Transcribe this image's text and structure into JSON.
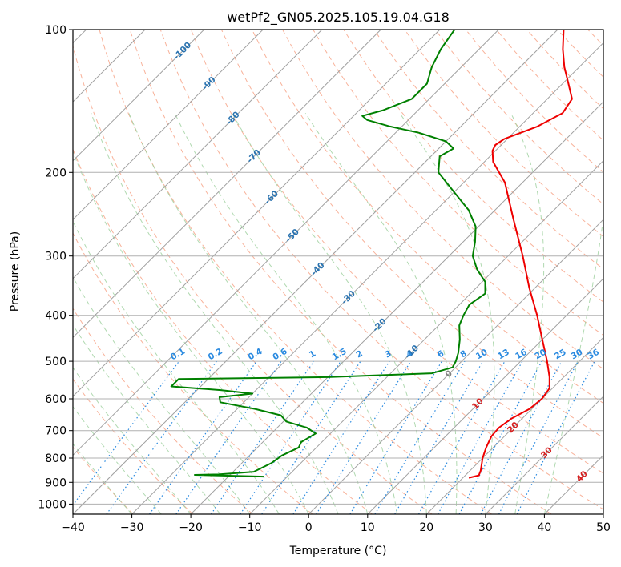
{
  "chart_data": {
    "type": "skew-t",
    "title": "wetPf2_GN05.2025.105.19.04.G18",
    "xlabel": "Temperature (°C)",
    "ylabel": "Pressure (hPa)",
    "xlim": [
      -40,
      50
    ],
    "ylim": [
      1050,
      100
    ],
    "x_ticks": [
      "−40",
      "−30",
      "−20",
      "−10",
      "0",
      "10",
      "20",
      "30",
      "40",
      "50"
    ],
    "y_ticks": [
      {
        "p": 100,
        "label": "100"
      },
      {
        "p": 200,
        "label": "200"
      },
      {
        "p": 300,
        "label": "300"
      },
      {
        "p": 400,
        "label": "400"
      },
      {
        "p": 500,
        "label": "500"
      },
      {
        "p": 600,
        "label": "600"
      },
      {
        "p": 700,
        "label": "700"
      },
      {
        "p": 800,
        "label": "800"
      },
      {
        "p": 900,
        "label": "900"
      },
      {
        "p": 1000,
        "label": "1000"
      }
    ],
    "grid": true,
    "colors": {
      "temperature": "#ee0000",
      "dewpoint": "#008000",
      "isotherm": "#a0a0a0",
      "dry_adiabat": "#f7a488",
      "moist_adiabat": "#9ccf9c",
      "mixing_ratio": "#2a8ae0",
      "isotherm_label_cold": "#2a73b0",
      "isotherm_label_warm": "#d62020",
      "isotherm_label_zero": "#808080"
    },
    "temperature_profile": [
      {
        "p": 880,
        "t": 21.0
      },
      {
        "p": 870,
        "t": 22.3
      },
      {
        "p": 850,
        "t": 21.8
      },
      {
        "p": 800,
        "t": 20.0
      },
      {
        "p": 760,
        "t": 18.8
      },
      {
        "p": 720,
        "t": 17.8
      },
      {
        "p": 690,
        "t": 17.6
      },
      {
        "p": 660,
        "t": 18.2
      },
      {
        "p": 630,
        "t": 19.6
      },
      {
        "p": 600,
        "t": 20.0
      },
      {
        "p": 570,
        "t": 19.5
      },
      {
        "p": 540,
        "t": 17.6
      },
      {
        "p": 500,
        "t": 14.5
      },
      {
        "p": 450,
        "t": 10.0
      },
      {
        "p": 400,
        "t": 5.0
      },
      {
        "p": 350,
        "t": -1.0
      },
      {
        "p": 300,
        "t": -7.5
      },
      {
        "p": 250,
        "t": -15.5
      },
      {
        "p": 210,
        "t": -23.0
      },
      {
        "p": 190,
        "t": -28.5
      },
      {
        "p": 180,
        "t": -30.5
      },
      {
        "p": 175,
        "t": -31.0
      },
      {
        "p": 170,
        "t": -30.5
      },
      {
        "p": 160,
        "t": -27.0
      },
      {
        "p": 150,
        "t": -25.0
      },
      {
        "p": 140,
        "t": -25.8
      },
      {
        "p": 130,
        "t": -29.0
      },
      {
        "p": 120,
        "t": -32.5
      },
      {
        "p": 110,
        "t": -35.8
      },
      {
        "p": 100,
        "t": -39.0
      }
    ],
    "dewpoint_profile": [
      {
        "p": 875,
        "td": -14.0
      },
      {
        "p": 868,
        "td": -26.0
      },
      {
        "p": 866,
        "td": -22.0
      },
      {
        "p": 855,
        "td": -16.5
      },
      {
        "p": 820,
        "td": -15.0
      },
      {
        "p": 790,
        "td": -14.5
      },
      {
        "p": 760,
        "td": -13.0
      },
      {
        "p": 740,
        "td": -13.5
      },
      {
        "p": 710,
        "td": -12.5
      },
      {
        "p": 690,
        "td": -15.0
      },
      {
        "p": 670,
        "td": -19.5
      },
      {
        "p": 650,
        "td": -21.5
      },
      {
        "p": 630,
        "td": -27.0
      },
      {
        "p": 610,
        "td": -34.0
      },
      {
        "p": 595,
        "td": -35.0
      },
      {
        "p": 585,
        "td": -30.0
      },
      {
        "p": 575,
        "td": -36.0
      },
      {
        "p": 565,
        "td": -45.0
      },
      {
        "p": 545,
        "td": -45.0
      },
      {
        "p": 540,
        "td": -20.0
      },
      {
        "p": 530,
        "td": -3.0
      },
      {
        "p": 515,
        "td": -0.5
      },
      {
        "p": 500,
        "td": -1.0
      },
      {
        "p": 480,
        "td": -2.0
      },
      {
        "p": 450,
        "td": -4.0
      },
      {
        "p": 420,
        "td": -6.5
      },
      {
        "p": 400,
        "td": -7.5
      },
      {
        "p": 380,
        "td": -8.3
      },
      {
        "p": 360,
        "td": -7.5
      },
      {
        "p": 340,
        "td": -9.5
      },
      {
        "p": 320,
        "td": -13.0
      },
      {
        "p": 300,
        "td": -16.0
      },
      {
        "p": 280,
        "td": -18.0
      },
      {
        "p": 260,
        "td": -20.5
      },
      {
        "p": 240,
        "td": -24.5
      },
      {
        "p": 220,
        "td": -30.0
      },
      {
        "p": 200,
        "td": -36.0
      },
      {
        "p": 185,
        "td": -38.5
      },
      {
        "p": 178,
        "td": -37.5
      },
      {
        "p": 172,
        "td": -40.0
      },
      {
        "p": 165,
        "td": -46.0
      },
      {
        "p": 160,
        "td": -52.0
      },
      {
        "p": 155,
        "td": -57.0
      },
      {
        "p": 152,
        "td": -58.5
      },
      {
        "p": 148,
        "td": -56.0
      },
      {
        "p": 140,
        "td": -53.0
      },
      {
        "p": 130,
        "td": -53.0
      },
      {
        "p": 120,
        "td": -55.0
      },
      {
        "p": 110,
        "td": -56.5
      },
      {
        "p": 100,
        "td": -57.5
      }
    ],
    "isotherm_labels": [
      {
        "t": -100,
        "label": "-100",
        "p": 111
      },
      {
        "t": -90,
        "label": "-90",
        "p": 130
      },
      {
        "t": -80,
        "label": "-80",
        "p": 154
      },
      {
        "t": -70,
        "label": "-70",
        "p": 185
      },
      {
        "t": -60,
        "label": "-60",
        "p": 226
      },
      {
        "t": -50,
        "label": "-50",
        "p": 272
      },
      {
        "t": -40,
        "label": "-40",
        "p": 320
      },
      {
        "t": -30,
        "label": "-30",
        "p": 367
      },
      {
        "t": -20,
        "label": "-20",
        "p": 420
      },
      {
        "t": -10,
        "label": "-10",
        "p": 478
      },
      {
        "t": 0,
        "label": "0",
        "p": 532
      },
      {
        "t": 10,
        "label": "10",
        "p": 615
      },
      {
        "t": 20,
        "label": "20",
        "p": 690
      },
      {
        "t": 30,
        "label": "30",
        "p": 780
      },
      {
        "t": 40,
        "label": "40",
        "p": 875
      }
    ],
    "mixing_ratio_labels": [
      "0.1",
      "0.2",
      "0.4",
      "0.6",
      "1",
      "1.5",
      "2",
      "3",
      "4",
      "6",
      "8",
      "10",
      "13",
      "16",
      "20",
      "25",
      "30",
      "36"
    ]
  }
}
